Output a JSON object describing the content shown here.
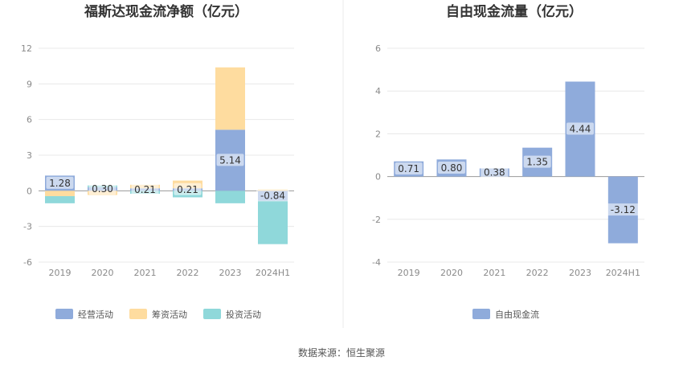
{
  "source": "数据来源：恒生聚源",
  "chart_data": [
    {
      "type": "bar",
      "stacked": true,
      "title": "福斯达现金流净额（亿元）",
      "categories": [
        "2019",
        "2020",
        "2021",
        "2022",
        "2023",
        "2024H1"
      ],
      "ylim": [
        -6,
        12
      ],
      "yticks": [
        "12",
        "9",
        "6",
        "3",
        "0",
        "-3",
        "-6"
      ],
      "grid": true,
      "legend_position": "bottom-center",
      "series": [
        {
          "name": "经营活动",
          "color": "#8fabdb",
          "values": [
            1.28,
            0.3,
            0.21,
            0.21,
            5.14,
            -0.84
          ]
        },
        {
          "name": "筹资活动",
          "color": "#fedc9f",
          "values": [
            -0.45,
            -0.35,
            0.3,
            0.65,
            5.25,
            0.12
          ]
        },
        {
          "name": "投资活动",
          "color": "#8fd8da",
          "values": [
            -0.6,
            0.15,
            -0.25,
            -0.55,
            -1.05,
            -3.65
          ]
        }
      ],
      "data_labels": [
        "1.28",
        "0.30",
        "0.21",
        "0.21",
        "5.14",
        "-0.84"
      ]
    },
    {
      "type": "bar",
      "title": "自由现金流量（亿元）",
      "categories": [
        "2019",
        "2020",
        "2021",
        "2022",
        "2023",
        "2024H1"
      ],
      "ylim": [
        -4,
        6
      ],
      "yticks": [
        "6",
        "4",
        "2",
        "0",
        "-2",
        "-4"
      ],
      "grid": true,
      "legend_position": "bottom-center",
      "series": [
        {
          "name": "自由现金流",
          "color": "#8fabdb",
          "values": [
            0.71,
            0.8,
            0.38,
            1.35,
            4.44,
            -3.12
          ]
        }
      ],
      "data_labels": [
        "0.71",
        "0.80",
        "0.38",
        "1.35",
        "4.44",
        "-3.12"
      ]
    }
  ]
}
